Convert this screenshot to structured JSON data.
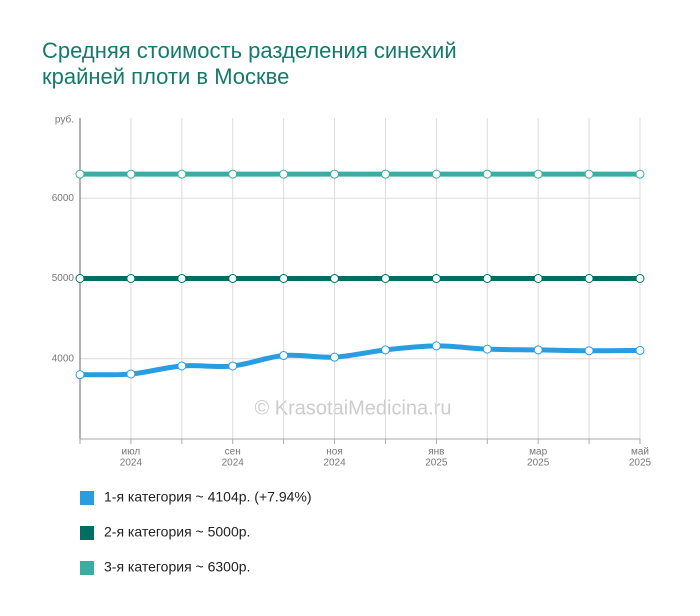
{
  "chart_data": {
    "type": "line",
    "title": [
      "Средняя стоимость разделения синехий",
      "крайней плоти в Москве"
    ],
    "y_unit": "руб.",
    "watermark": "© KrasotaiMedicina.ru",
    "categories": [
      null,
      [
        "июл",
        "2024"
      ],
      null,
      [
        "сен",
        "2024"
      ],
      null,
      [
        "ноя",
        "2024"
      ],
      null,
      [
        "янв",
        "2025"
      ],
      null,
      [
        "мар",
        "2025"
      ],
      null,
      [
        "май",
        "2025"
      ]
    ],
    "series": [
      {
        "name": "1-я категория ~ 4104р. (+7.94%)",
        "color": "#2a9de0",
        "values": [
          3802,
          3810,
          3910,
          3910,
          4040,
          4020,
          4110,
          4160,
          4120,
          4110,
          4100,
          4104
        ]
      },
      {
        "name": "2-я категория ~ 5000р.",
        "color": "#006e64",
        "values": [
          5000,
          5000,
          5000,
          5000,
          5000,
          5000,
          5000,
          5000,
          5000,
          5000,
          5000,
          5000
        ]
      },
      {
        "name": "3-я категория ~ 6300р.",
        "color": "#3aaea3",
        "values": [
          6300,
          6300,
          6300,
          6300,
          6300,
          6300,
          6300,
          6300,
          6300,
          6300,
          6300,
          6300
        ]
      }
    ],
    "ylim": [
      3000,
      7000
    ],
    "yticks": [
      4000,
      5000,
      6000
    ],
    "grid": true
  }
}
